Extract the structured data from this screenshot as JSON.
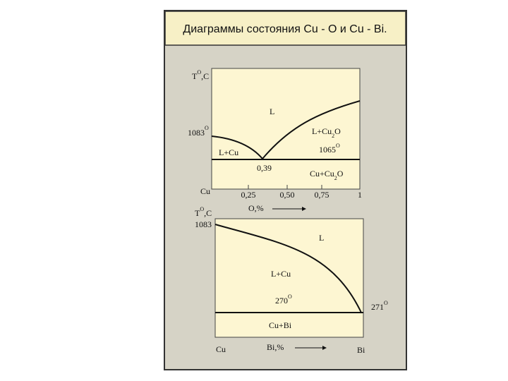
{
  "header": {
    "title": "Диаграммы состояния Cu - O и Cu - Bi."
  },
  "diagram_cu_o": {
    "y_label": {
      "main": "T",
      "sup": "O",
      "tail": ",C"
    },
    "melting": {
      "main": "1083",
      "sup": "O"
    },
    "liquid": "L",
    "liquid_cu2o": {
      "main": "L+Cu",
      "sub": "2",
      "tail": "O"
    },
    "liquid_cu": "L+Cu",
    "eutectic_temp": {
      "main": "1065",
      "sup": "O"
    },
    "eutectic_conc": "0,39",
    "solid": {
      "main": "Cu+Cu",
      "sub": "2",
      "tail": "O"
    },
    "x_origin": "Cu",
    "x_ticks": [
      "0,25",
      "0,50",
      "0,75",
      "1"
    ],
    "x_label": "O,%"
  },
  "diagram_cu_bi": {
    "y_label": {
      "main": "T",
      "sup": "O",
      "tail": ",C"
    },
    "melting": "1083",
    "liquid": "L",
    "liquid_cu": "L+Cu",
    "eutectic_temp": {
      "main": "270",
      "sup": "O"
    },
    "bi_melting": {
      "main": "271",
      "sup": "O"
    },
    "solid": "Cu+Bi",
    "x_left": "Cu",
    "x_label": "Bi,%",
    "x_right": "Bi"
  }
}
